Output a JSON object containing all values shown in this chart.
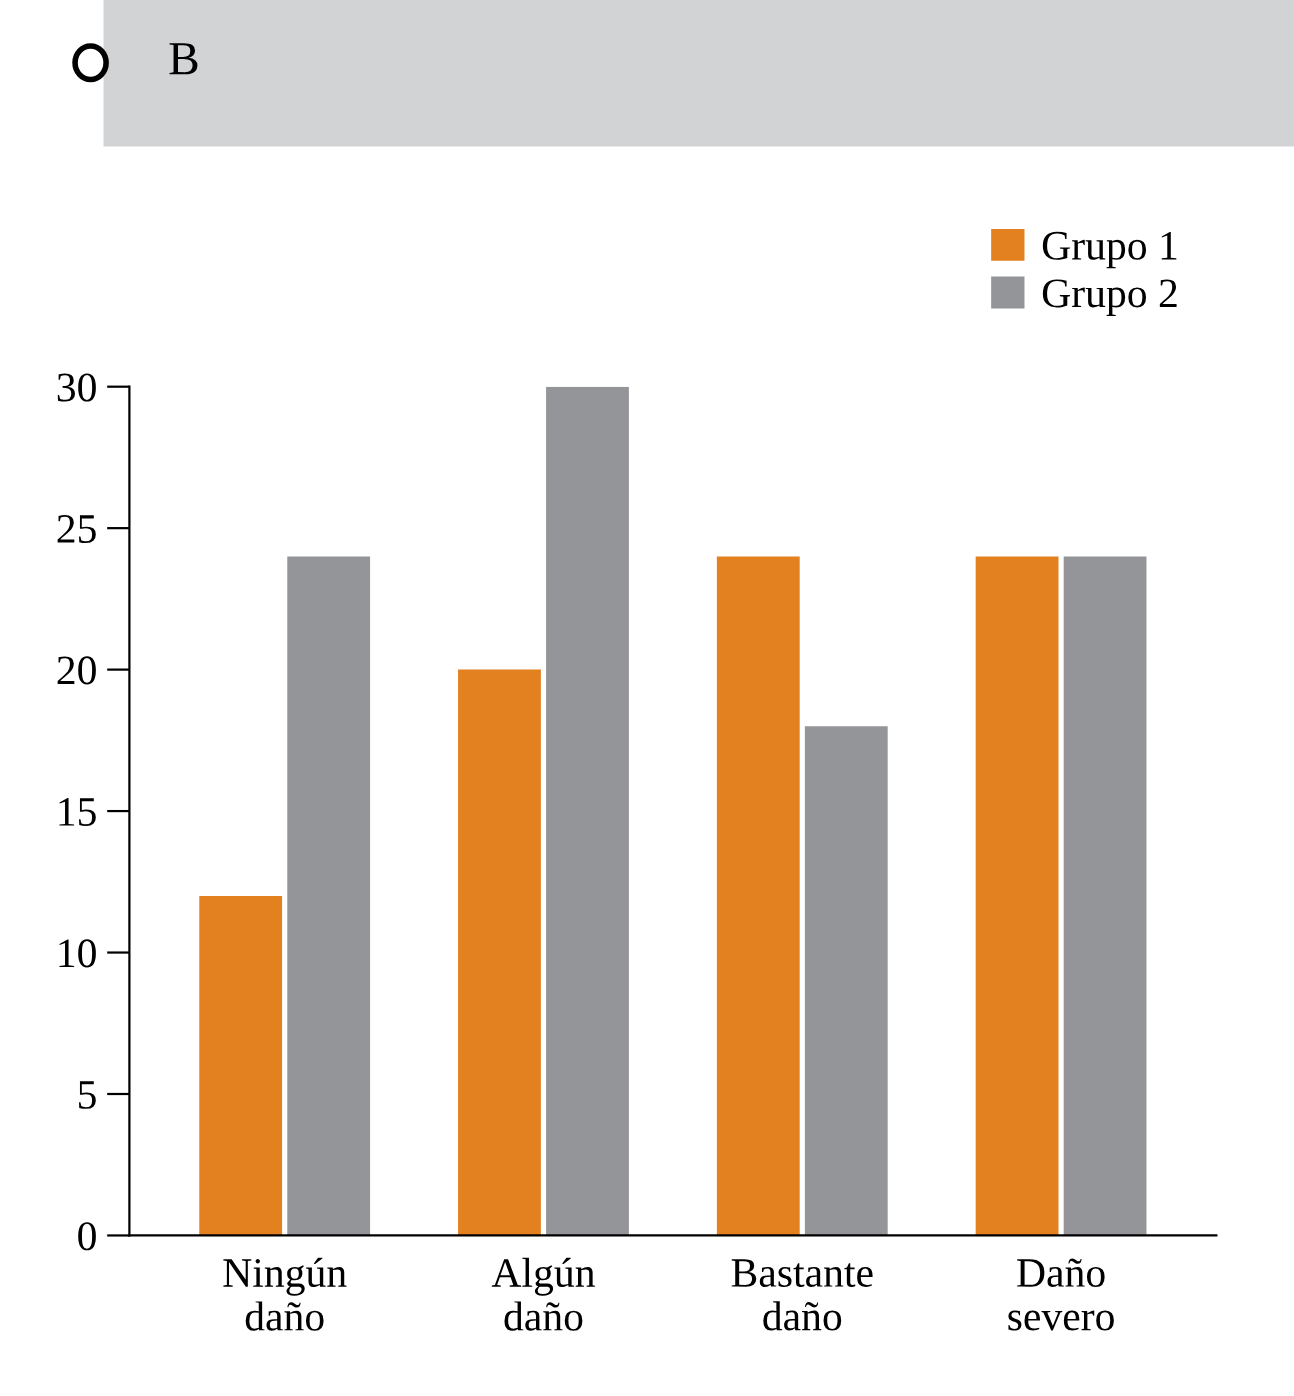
{
  "chart_data": {
    "type": "bar",
    "title": "B",
    "categories": [
      "Ningún\ndaño",
      "Algún\ndaño",
      "Bastante\ndaño",
      "Daño\nsevero"
    ],
    "series": [
      {
        "name": "Grupo 1",
        "color": "#e3801f",
        "values": [
          12,
          20,
          24,
          24
        ]
      },
      {
        "name": "Grupo 2",
        "color": "#939598",
        "values": [
          24,
          30,
          18,
          24
        ]
      }
    ],
    "ylim": [
      0,
      30
    ],
    "yticks": [
      0,
      5,
      10,
      15,
      20,
      25,
      30
    ],
    "grid": false,
    "legend": "top right"
  }
}
